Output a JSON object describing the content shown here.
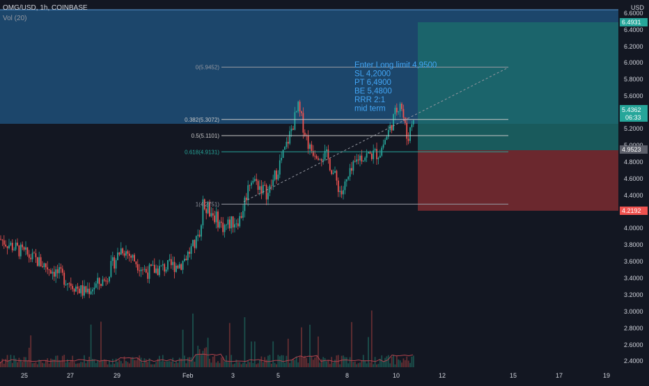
{
  "header": {
    "symbol_line": "OMG/USD, 1h, COINBASE",
    "volume_label": "Vol (20)"
  },
  "axis": {
    "currency": "USD",
    "price_ticks": [
      "6.6000",
      "6.4000",
      "6.2000",
      "6.0000",
      "5.8000",
      "5.6000",
      "5.2000",
      "5.0000",
      "4.8000",
      "4.6000",
      "4.4000",
      "4.0000",
      "3.8000",
      "3.6000",
      "3.4000",
      "3.2000",
      "3.0000",
      "2.8000",
      "2.6000",
      "2.4000"
    ],
    "time_ticks": [
      "25",
      "27",
      "29",
      "Feb",
      "3",
      "5",
      "8",
      "10",
      "12",
      "15",
      "17",
      "19"
    ]
  },
  "price_badges": {
    "target": "6.4931",
    "current": "5.4362",
    "countdown": "06:33",
    "entry": "4.9523",
    "stop": "4.2192"
  },
  "fibonacci": [
    {
      "label": "0(5.9452)",
      "value": 5.9452
    },
    {
      "label": "0.382(5.3072)",
      "value": 5.3072
    },
    {
      "label": "0.5(5.1101)",
      "value": 5.1101
    },
    {
      "label": "0.618(4.9131)",
      "value": 4.9131
    },
    {
      "label": "1(4.2751)",
      "value": 4.2751
    }
  ],
  "annotation": {
    "lines": [
      "Enter Long limit 4,9500",
      "SL 4,2000",
      "PT 6,4900",
      "BE 5,4800",
      "RRR 2:1",
      "mid term"
    ]
  },
  "colors": {
    "background": "#131722",
    "up": "#26a69a",
    "down": "#ef5350",
    "blue_zone": "#1f4f78",
    "accent_text": "#42a5f5"
  }
}
